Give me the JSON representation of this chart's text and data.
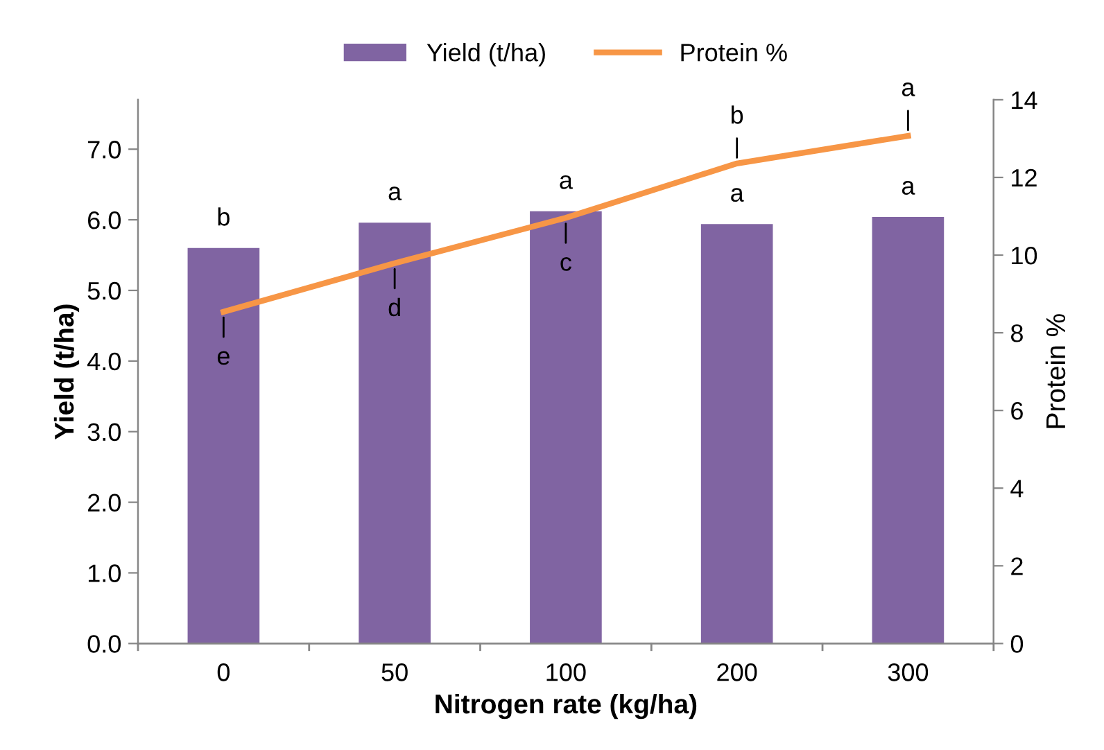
{
  "chart_data": {
    "type": "bar",
    "xlabel": "Nitrogen rate (kg/ha)",
    "ylabel": "Yield (t/ha)",
    "y2label": "Protein %",
    "categories": [
      "0",
      "50",
      "100",
      "200",
      "300"
    ],
    "series": [
      {
        "name": "Yield (t/ha)",
        "color": "#8064a2",
        "values": [
          5.6,
          5.96,
          6.12,
          5.94,
          6.04
        ]
      },
      {
        "name": "Protein %",
        "type": "line",
        "axis": "y2",
        "color": "#f79646",
        "values": [
          8.54,
          9.79,
          10.96,
          12.36,
          13.07
        ]
      }
    ],
    "ylim": [
      0,
      7.7
    ],
    "yticks": [
      {
        "value": 0,
        "label": "0.0"
      },
      {
        "value": 1,
        "label": "1.0"
      },
      {
        "value": 2,
        "label": "2.0"
      },
      {
        "value": 3,
        "label": "3.0"
      },
      {
        "value": 4,
        "label": "4.0"
      },
      {
        "value": 5,
        "label": "5.0"
      },
      {
        "value": 6,
        "label": "6.0"
      },
      {
        "value": 7,
        "label": "7.0"
      }
    ],
    "y2lim": [
      0,
      14
    ],
    "y2ticks": [
      0,
      2,
      4,
      6,
      8,
      10,
      12,
      14
    ],
    "annotations": [
      {
        "text": "b",
        "x": "0",
        "y": 5.6
      },
      {
        "text": "a",
        "x": "50",
        "y": 5.96
      },
      {
        "text": "a",
        "x": "100",
        "y": 6.12
      },
      {
        "text": "a",
        "x": "200",
        "y": 5.94
      },
      {
        "text": "a",
        "x": "300",
        "y": 6.04
      },
      "e",
      "d",
      "c",
      "b",
      "a"
    ],
    "legend": "top",
    "grid": false,
    "marker": "none"
  }
}
